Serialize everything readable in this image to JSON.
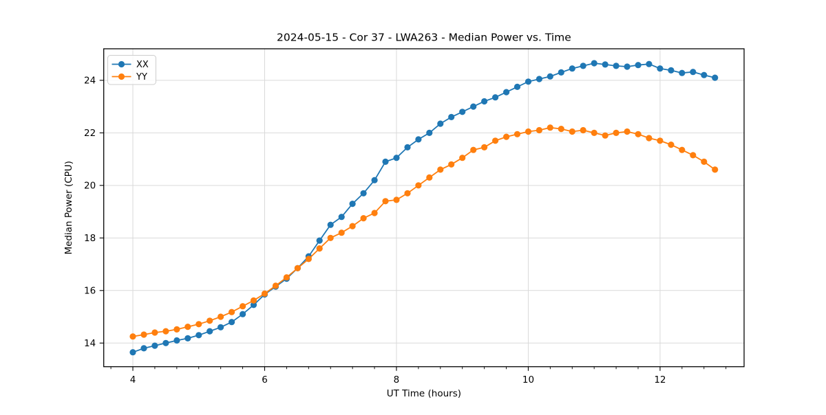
{
  "chart_data": {
    "type": "line",
    "title": "2024-05-15 - Cor 37 - LWA263 - Median Power vs. Time",
    "xlabel": "UT Time (hours)",
    "ylabel": "Median Power (CPU)",
    "xlim": [
      3.558,
      13.275
    ],
    "ylim": [
      13.1,
      25.2
    ],
    "xticks": [
      4,
      6,
      8,
      10,
      12
    ],
    "yticks": [
      14,
      16,
      18,
      20,
      22,
      24
    ],
    "x_minor_tick_step": 0.33333,
    "grid": true,
    "legend_position": "upper left",
    "marker": "circle",
    "x": [
      4.0,
      4.167,
      4.333,
      4.5,
      4.667,
      4.833,
      5.0,
      5.167,
      5.333,
      5.5,
      5.667,
      5.833,
      6.0,
      6.167,
      6.333,
      6.5,
      6.667,
      6.833,
      7.0,
      7.167,
      7.333,
      7.5,
      7.667,
      7.833,
      8.0,
      8.167,
      8.333,
      8.5,
      8.667,
      8.833,
      9.0,
      9.167,
      9.333,
      9.5,
      9.667,
      9.833,
      10.0,
      10.167,
      10.333,
      10.5,
      10.667,
      10.833,
      11.0,
      11.167,
      11.333,
      11.5,
      11.667,
      11.833,
      12.0,
      12.167,
      12.333,
      12.5,
      12.667,
      12.833
    ],
    "series": [
      {
        "name": "XX",
        "color": "#1f77b4",
        "values": [
          13.65,
          13.8,
          13.9,
          14.0,
          14.1,
          14.18,
          14.3,
          14.45,
          14.6,
          14.8,
          15.1,
          15.45,
          15.85,
          16.15,
          16.45,
          16.85,
          17.3,
          17.9,
          18.5,
          18.8,
          19.3,
          19.7,
          20.2,
          20.9,
          21.05,
          21.45,
          21.75,
          22.0,
          22.35,
          22.6,
          22.8,
          23.0,
          23.2,
          23.35,
          23.55,
          23.75,
          23.95,
          24.05,
          24.15,
          24.3,
          24.45,
          24.55,
          24.65,
          24.6,
          24.55,
          24.52,
          24.58,
          24.62,
          24.45,
          24.38,
          24.28,
          24.32,
          24.2,
          24.1
        ]
      },
      {
        "name": "YY",
        "color": "#ff7f0e",
        "values": [
          14.25,
          14.32,
          14.4,
          14.45,
          14.52,
          14.62,
          14.72,
          14.85,
          15.0,
          15.18,
          15.4,
          15.62,
          15.88,
          16.18,
          16.5,
          16.85,
          17.2,
          17.6,
          18.0,
          18.2,
          18.45,
          18.75,
          18.95,
          19.4,
          19.45,
          19.7,
          20.0,
          20.3,
          20.6,
          20.8,
          21.05,
          21.35,
          21.45,
          21.7,
          21.85,
          21.95,
          22.05,
          22.1,
          22.2,
          22.15,
          22.05,
          22.1,
          22.0,
          21.9,
          22.0,
          22.05,
          21.95,
          21.8,
          21.7,
          21.55,
          21.35,
          21.15,
          20.9,
          20.6
        ]
      }
    ],
    "grid_color": "#d9d9d9",
    "spine_color": "#000000",
    "background_color": "#ffffff"
  }
}
